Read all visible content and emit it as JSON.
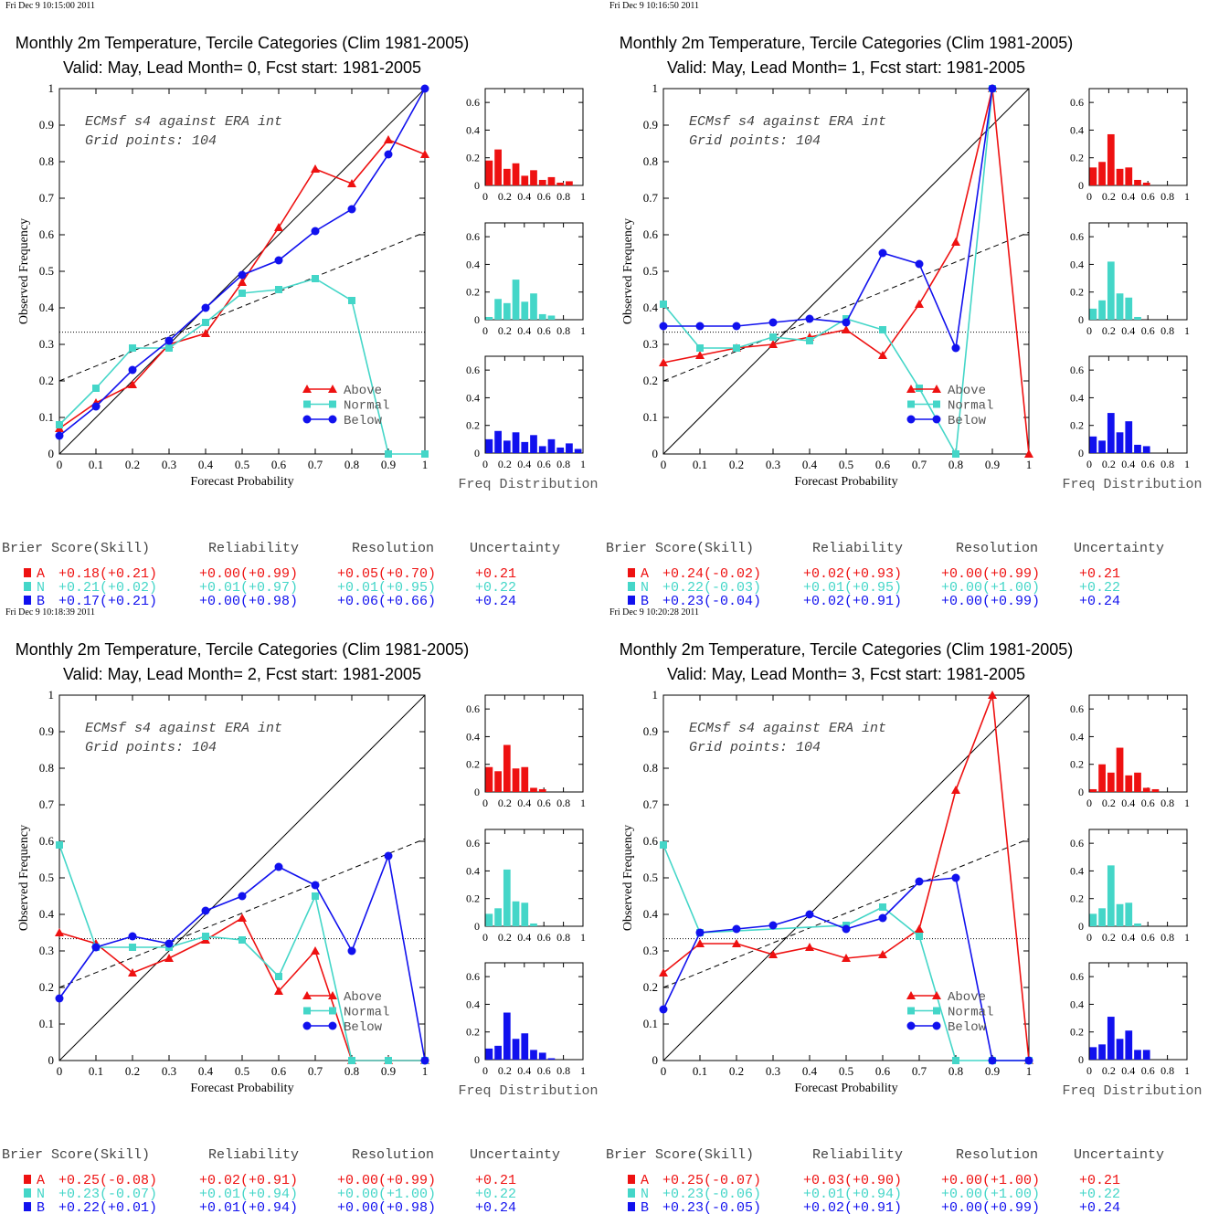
{
  "colors": {
    "A": "#ee1111",
    "N": "#44d6c8",
    "B": "#1111ee"
  },
  "brier_headers": [
    "Brier Score(Skill)",
    "Reliability",
    "Resolution",
    "Uncertainty"
  ],
  "legend_labels": {
    "A": "Above",
    "N": "Normal",
    "B": "Below"
  },
  "x_label": "Forecast Probability",
  "y_label": "Observed Frequency",
  "hist_label": "Freq Distribution",
  "note_line1": "ECMsf s4 against ERA int",
  "note_line2": "Grid points:  104",
  "rel_ticks": [
    "0",
    "0.1",
    "0.2",
    "0.3",
    "0.4",
    "0.5",
    "0.6",
    "0.7",
    "0.8",
    "0.9",
    "1"
  ],
  "hist_yticks": [
    "0",
    "0.2",
    "0.4",
    "0.6"
  ],
  "hist_xticks": [
    "0",
    "0.2",
    "0.4",
    "0.6",
    "0.8",
    "1"
  ],
  "chart_data": [
    {
      "type": "line",
      "timestamp": "Fri Dec  9 10:15:00 2011",
      "title": "Monthly 2m Temperature, Tercile Categories (Clim 1981-2005)",
      "subtitle": "Valid: May, Lead Month= 0, Fcst start: 1981-2005",
      "x": [
        0,
        0.1,
        0.2,
        0.3,
        0.4,
        0.5,
        0.6,
        0.7,
        0.8,
        0.9,
        1
      ],
      "series": [
        {
          "name": "Above",
          "key": "A",
          "values": [
            0.07,
            0.14,
            0.19,
            0.3,
            0.33,
            0.47,
            0.62,
            0.78,
            0.74,
            0.86,
            0.82
          ]
        },
        {
          "name": "Normal",
          "key": "N",
          "values": [
            0.08,
            0.18,
            0.29,
            0.29,
            0.36,
            0.44,
            0.45,
            0.48,
            0.42,
            0.0,
            0.0
          ]
        },
        {
          "name": "Below",
          "key": "B",
          "values": [
            0.05,
            0.13,
            0.23,
            0.31,
            0.4,
            0.49,
            0.53,
            0.61,
            0.67,
            0.82,
            1.0
          ]
        }
      ],
      "hist": {
        "A": [
          0.18,
          0.26,
          0.12,
          0.16,
          0.07,
          0.11,
          0.04,
          0.06,
          0.02,
          0.03
        ],
        "N": [
          0.02,
          0.15,
          0.12,
          0.29,
          0.13,
          0.19,
          0.04,
          0.03,
          0.0,
          0.0
        ],
        "B": [
          0.1,
          0.16,
          0.09,
          0.15,
          0.08,
          0.13,
          0.05,
          0.1,
          0.04,
          0.07,
          0.03
        ]
      },
      "brier": [
        {
          "key": "A",
          "bs": "+0.18(+0.21)",
          "rel": "+0.00(+0.99)",
          "res": "+0.05(+0.70)",
          "unc": "+0.21"
        },
        {
          "key": "N",
          "bs": "+0.21(+0.02)",
          "rel": "+0.01(+0.97)",
          "res": "+0.01(+0.95)",
          "unc": "+0.22"
        },
        {
          "key": "B",
          "bs": "+0.17(+0.21)",
          "rel": "+0.00(+0.98)",
          "res": "+0.06(+0.66)",
          "unc": "+0.24"
        }
      ]
    },
    {
      "type": "line",
      "timestamp": "Fri Dec  9 10:16:50 2011",
      "title": "Monthly 2m Temperature, Tercile Categories (Clim 1981-2005)",
      "subtitle": "Valid: May, Lead Month= 1, Fcst start: 1981-2005",
      "x": [
        0,
        0.1,
        0.2,
        0.3,
        0.4,
        0.5,
        0.6,
        0.7,
        0.8,
        0.9,
        1
      ],
      "series": [
        {
          "name": "Above",
          "key": "A",
          "values": [
            0.25,
            0.27,
            0.29,
            0.3,
            0.32,
            0.34,
            0.27,
            0.41,
            0.58,
            1.0,
            0.0
          ]
        },
        {
          "name": "Normal",
          "key": "N",
          "values": [
            0.41,
            0.29,
            0.29,
            0.32,
            0.31,
            0.37,
            0.34,
            0.18,
            0.0,
            1.0,
            null
          ]
        },
        {
          "name": "Below",
          "key": "B",
          "values": [
            0.35,
            0.35,
            0.35,
            0.36,
            0.37,
            0.36,
            0.55,
            0.52,
            0.29,
            1.0,
            null
          ]
        }
      ],
      "hist": {
        "A": [
          0.13,
          0.17,
          0.37,
          0.12,
          0.13,
          0.04,
          0.02
        ],
        "N": [
          0.08,
          0.14,
          0.42,
          0.19,
          0.16,
          0.02
        ],
        "B": [
          0.12,
          0.09,
          0.29,
          0.15,
          0.23,
          0.06,
          0.05
        ]
      },
      "brier": [
        {
          "key": "A",
          "bs": "+0.24(-0.02)",
          "rel": "+0.02(+0.93)",
          "res": "+0.00(+0.99)",
          "unc": "+0.21"
        },
        {
          "key": "N",
          "bs": "+0.22(-0.03)",
          "rel": "+0.01(+0.95)",
          "res": "+0.00(+1.00)",
          "unc": "+0.22"
        },
        {
          "key": "B",
          "bs": "+0.23(-0.04)",
          "rel": "+0.02(+0.91)",
          "res": "+0.00(+0.99)",
          "unc": "+0.24"
        }
      ]
    },
    {
      "type": "line",
      "timestamp": "Fri Dec  9 10:18:39 2011",
      "title": "Monthly 2m Temperature, Tercile Categories (Clim 1981-2005)",
      "subtitle": "Valid: May, Lead Month= 2, Fcst start: 1981-2005",
      "x": [
        0,
        0.1,
        0.2,
        0.3,
        0.4,
        0.5,
        0.6,
        0.7,
        0.8,
        0.9,
        1
      ],
      "series": [
        {
          "name": "Above",
          "key": "A",
          "values": [
            0.35,
            0.32,
            0.24,
            0.28,
            0.33,
            0.39,
            0.19,
            0.3,
            0.0,
            0.0,
            0.0
          ]
        },
        {
          "name": "Normal",
          "key": "N",
          "values": [
            0.59,
            0.31,
            0.31,
            0.31,
            0.34,
            0.33,
            0.23,
            0.45,
            0.0,
            0.0,
            0.0
          ]
        },
        {
          "name": "Below",
          "key": "B",
          "values": [
            0.17,
            0.31,
            0.34,
            0.32,
            0.41,
            0.45,
            0.53,
            0.48,
            0.3,
            0.56,
            0.0
          ]
        }
      ],
      "hist": {
        "A": [
          0.18,
          0.15,
          0.34,
          0.17,
          0.18,
          0.03,
          0.02
        ],
        "N": [
          0.09,
          0.13,
          0.41,
          0.18,
          0.17,
          0.02
        ],
        "B": [
          0.08,
          0.1,
          0.34,
          0.15,
          0.19,
          0.07,
          0.05,
          0.01
        ]
      },
      "brier": [
        {
          "key": "A",
          "bs": "+0.25(-0.08)",
          "rel": "+0.02(+0.91)",
          "res": "+0.00(+0.99)",
          "unc": "+0.21"
        },
        {
          "key": "N",
          "bs": "+0.23(-0.07)",
          "rel": "+0.01(+0.94)",
          "res": "+0.00(+1.00)",
          "unc": "+0.22"
        },
        {
          "key": "B",
          "bs": "+0.22(+0.01)",
          "rel": "+0.01(+0.94)",
          "res": "+0.00(+0.98)",
          "unc": "+0.24"
        }
      ]
    },
    {
      "type": "line",
      "timestamp": "Fri Dec  9 10:20:28 2011",
      "title": "Monthly 2m Temperature, Tercile Categories (Clim 1981-2005)",
      "subtitle": "Valid: May, Lead Month= 3, Fcst start: 1981-2005",
      "x": [
        0,
        0.1,
        0.2,
        0.3,
        0.4,
        0.5,
        0.6,
        0.7,
        0.8,
        0.9,
        1
      ],
      "series": [
        {
          "name": "Above",
          "key": "A",
          "values": [
            0.24,
            0.32,
            0.32,
            0.29,
            0.31,
            0.28,
            0.29,
            0.36,
            0.74,
            1.0,
            0.0
          ]
        },
        {
          "name": "Normal",
          "key": "N",
          "values": [
            0.59,
            0.35,
            null,
            null,
            null,
            0.37,
            0.42,
            0.34,
            0.0,
            0.0,
            0.0
          ]
        },
        {
          "name": "Below",
          "key": "B",
          "values": [
            0.14,
            0.35,
            0.36,
            0.37,
            0.4,
            0.36,
            0.39,
            0.49,
            0.5,
            0.0,
            0.0
          ]
        }
      ],
      "hist": {
        "A": [
          0.02,
          0.2,
          0.14,
          0.32,
          0.12,
          0.14,
          0.03,
          0.02
        ],
        "N": [
          0.09,
          0.13,
          0.44,
          0.16,
          0.17,
          0.02
        ],
        "B": [
          0.09,
          0.11,
          0.31,
          0.15,
          0.21,
          0.07,
          0.07
        ]
      },
      "brier": [
        {
          "key": "A",
          "bs": "+0.25(-0.07)",
          "rel": "+0.03(+0.90)",
          "res": "+0.00(+1.00)",
          "unc": "+0.21"
        },
        {
          "key": "N",
          "bs": "+0.23(-0.06)",
          "rel": "+0.01(+0.94)",
          "res": "+0.00(+1.00)",
          "unc": "+0.22"
        },
        {
          "key": "B",
          "bs": "+0.23(-0.05)",
          "rel": "+0.02(+0.91)",
          "res": "+0.00(+0.99)",
          "unc": "+0.24"
        }
      ]
    }
  ]
}
